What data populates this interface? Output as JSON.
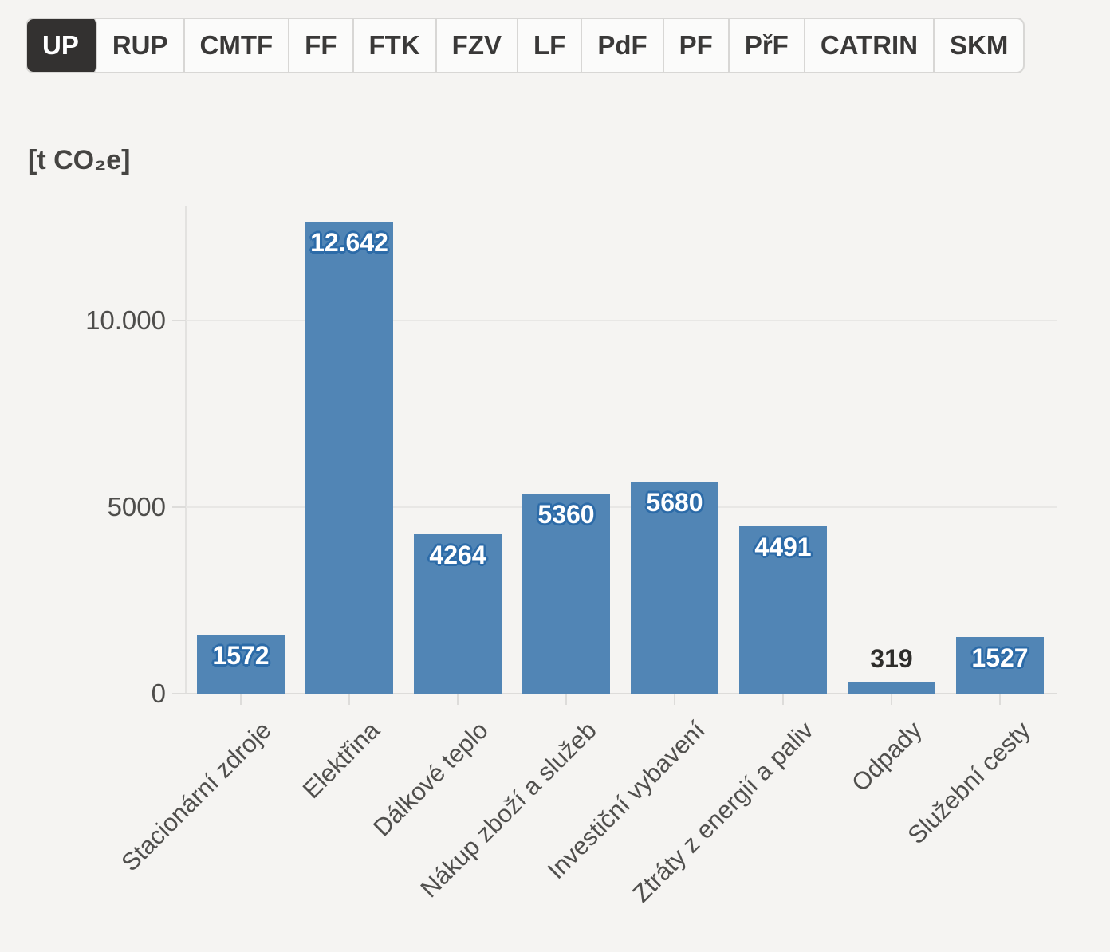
{
  "tabs": {
    "items": [
      {
        "label": "UP",
        "active": true
      },
      {
        "label": "RUP",
        "active": false
      },
      {
        "label": "CMTF",
        "active": false
      },
      {
        "label": "FF",
        "active": false
      },
      {
        "label": "FTK",
        "active": false
      },
      {
        "label": "FZV",
        "active": false
      },
      {
        "label": "LF",
        "active": false
      },
      {
        "label": "PdF",
        "active": false
      },
      {
        "label": "PF",
        "active": false
      },
      {
        "label": "PřF",
        "active": false
      },
      {
        "label": "CATRIN",
        "active": false
      },
      {
        "label": "SKM",
        "active": false
      }
    ]
  },
  "chart_data": {
    "type": "bar",
    "title": "[t CO₂e]",
    "categories": [
      "Stacionární zdroje",
      "Elektřina",
      "Dálkové teplo",
      "Nákup zboží a služeb",
      "Investiční vybavení",
      "Ztráty z energií a paliv",
      "Odpady",
      "Služební cesty"
    ],
    "values": [
      1572,
      12642,
      4264,
      5360,
      5680,
      4491,
      319,
      1527
    ],
    "value_labels": [
      "1572",
      "12.642",
      "4264",
      "5360",
      "5680",
      "4491",
      "319",
      "1527"
    ],
    "xlabel": "",
    "ylabel": "[t CO₂e]",
    "yticks": [
      {
        "value": 0,
        "label": "0"
      },
      {
        "value": 5000,
        "label": "5000"
      },
      {
        "value": 10000,
        "label": "10.000"
      }
    ],
    "ylim": [
      0,
      13080
    ],
    "grid": true,
    "legend": null,
    "colors": {
      "bar": "#5185b5",
      "value_label_text": "#ffffff",
      "value_label_halo": "#2c6ba8",
      "outside_value_label": "#2e2d2b",
      "background": "#f5f4f2",
      "active_tab_bg": "#333130",
      "active_tab_text": "#ffffff"
    }
  }
}
